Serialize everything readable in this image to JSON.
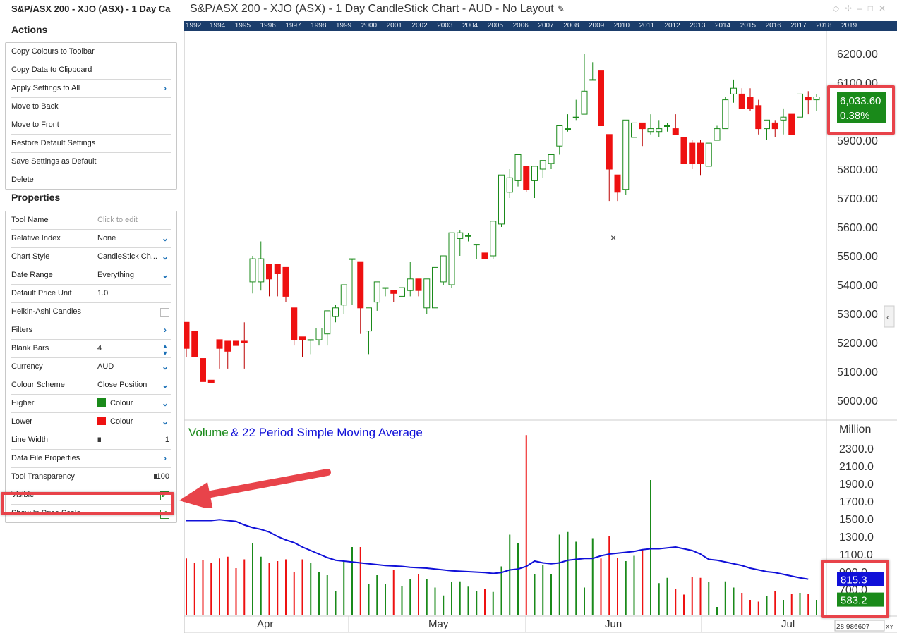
{
  "panel": {
    "title": "S&P/ASX 200 - XJO (ASX) - 1 Day Ca",
    "actions_heading": "Actions",
    "actions": [
      {
        "label": "Copy Colours to Toolbar",
        "arrow": false
      },
      {
        "label": "Copy Data to Clipboard",
        "arrow": false
      },
      {
        "label": "Apply Settings to All",
        "arrow": true
      },
      {
        "label": "Move to Back",
        "arrow": false
      },
      {
        "label": "Move to Front",
        "arrow": false
      },
      {
        "label": "Restore Default Settings",
        "arrow": false
      },
      {
        "label": "Save Settings as Default",
        "arrow": false
      },
      {
        "label": "Delete",
        "arrow": false
      }
    ],
    "properties_heading": "Properties",
    "properties": {
      "tool_name": {
        "label": "Tool Name",
        "placeholder": "Click to edit"
      },
      "relative_index": {
        "label": "Relative Index",
        "value": "None"
      },
      "chart_style": {
        "label": "Chart Style",
        "value": "CandleStick Ch..."
      },
      "date_range": {
        "label": "Date Range",
        "value": "Everything"
      },
      "default_price_unit": {
        "label": "Default Price Unit",
        "value": "1.0"
      },
      "heikin_ashi": {
        "label": "Heikin-Ashi Candles",
        "checked": false
      },
      "filters": {
        "label": "Filters"
      },
      "blank_bars": {
        "label": "Blank Bars",
        "value": "4"
      },
      "currency": {
        "label": "Currency",
        "value": "AUD"
      },
      "colour_scheme": {
        "label": "Colour Scheme",
        "value": "Close Position"
      },
      "higher": {
        "label": "Higher",
        "value": "Colour",
        "color": "#1a8a1a"
      },
      "lower": {
        "label": "Lower",
        "value": "Colour",
        "color": "#ee1111"
      },
      "line_width": {
        "label": "Line Width",
        "value": "1"
      },
      "data_file_properties": {
        "label": "Data File Properties"
      },
      "tool_transparency": {
        "label": "Tool Transparency",
        "value": "100"
      },
      "visible": {
        "label": "Visible",
        "checked": true
      },
      "show_in_price_scale": {
        "label": "Show In Price Scale",
        "checked": true
      }
    }
  },
  "window": {
    "title": "S&P/ASX 200 - XJO (ASX) - 1 Day CandleStick Chart - AUD - No Layout",
    "years": [
      "1992",
      "1994",
      "1995",
      "1996",
      "1997",
      "1998",
      "1999",
      "2000",
      "2001",
      "2002",
      "2003",
      "2004",
      "2005",
      "2006",
      "2007",
      "2008",
      "2009",
      "2010",
      "2011",
      "2012",
      "2013",
      "2014",
      "2015",
      "2016",
      "2017",
      "2018",
      "2019"
    ]
  },
  "chart_data": {
    "type": "candlestick",
    "price_ticks": [
      "6200.00",
      "6100.00",
      "6000.00",
      "5900.00",
      "5800.00",
      "5700.00",
      "5600.00",
      "5500.00",
      "5400.00",
      "5300.00",
      "5200.00",
      "5100.00",
      "5000.00"
    ],
    "last_price": "6,033.60",
    "last_change": "0.38%",
    "up_color": "#1a8a1a",
    "down_color": "#ee1111",
    "candles": [
      [
        5270,
        5290,
        5180,
        5170,
        5150
      ],
      [
        5240,
        5250,
        5150,
        5130,
        5150
      ],
      [
        5145,
        5160,
        5065,
        5060,
        5140
      ],
      [
        5070,
        5210,
        5060,
        5050,
        5080
      ],
      [
        5210,
        5240,
        5180,
        5170,
        5110
      ],
      [
        5205,
        5400,
        5170,
        5120,
        5110
      ],
      [
        5205,
        5230,
        5190,
        5170,
        5110
      ],
      [
        5205,
        5330,
        5200,
        5270,
        5110
      ],
      [
        5410,
        5470,
        5490,
        5500,
        5370
      ],
      [
        5410,
        5480,
        5490,
        5550,
        5380
      ],
      [
        5470,
        5480,
        5420,
        5400,
        5360
      ],
      [
        5470,
        5480,
        5440,
        5420,
        5360
      ],
      [
        5460,
        5480,
        5360,
        5350,
        5340
      ],
      [
        5320,
        5330,
        5210,
        5200,
        5190
      ],
      [
        5220,
        5240,
        5210,
        5200,
        5150
      ],
      [
        5210,
        5260,
        5210,
        5210,
        5160
      ],
      [
        5210,
        5240,
        5250,
        5240,
        5190
      ],
      [
        5230,
        5310,
        5310,
        5270,
        5190
      ],
      [
        5290,
        5320,
        5320,
        5330,
        5270
      ],
      [
        5330,
        5400,
        5400,
        5380,
        5300
      ],
      [
        5490,
        5550,
        5490,
        5470,
        5330
      ],
      [
        5480,
        5390,
        5320,
        5240,
        5230
      ],
      [
        5240,
        5300,
        5320,
        5320,
        5160
      ],
      [
        5340,
        5410,
        5410,
        5410,
        5310
      ],
      [
        5390,
        5400,
        5390,
        5370,
        5360
      ],
      [
        5380,
        5390,
        5370,
        5370,
        5340
      ],
      [
        5360,
        5410,
        5390,
        5390,
        5350
      ],
      [
        5380,
        5430,
        5420,
        5480,
        5360
      ],
      [
        5420,
        5400,
        5380,
        5320,
        5360
      ],
      [
        5320,
        5330,
        5420,
        5410,
        5300
      ],
      [
        5320,
        5420,
        5460,
        5470,
        5310
      ],
      [
        5410,
        5480,
        5500,
        5490,
        5400
      ],
      [
        5400,
        5490,
        5580,
        5560,
        5390
      ],
      [
        5560,
        5540,
        5580,
        5590,
        5500
      ],
      [
        5570,
        5580,
        5570,
        5580,
        5550
      ],
      [
        5540,
        5600,
        5540,
        5520,
        5490
      ],
      [
        5510,
        5550,
        5490,
        5510,
        5490
      ],
      [
        5500,
        5600,
        5620,
        5620,
        5490
      ],
      [
        5610,
        5700,
        5780,
        5780,
        5600
      ],
      [
        5720,
        5780,
        5770,
        5800,
        5700
      ],
      [
        5760,
        5800,
        5850,
        5850,
        5740
      ],
      [
        5810,
        5820,
        5730,
        5720,
        5720
      ],
      [
        5760,
        5790,
        5810,
        5810,
        5700
      ],
      [
        5800,
        5830,
        5830,
        5830,
        5770
      ],
      [
        5820,
        5850,
        5850,
        5850,
        5800
      ],
      [
        5880,
        5940,
        5950,
        5950,
        5850
      ],
      [
        5940,
        5980,
        5940,
        5990,
        5930
      ],
      [
        5980,
        6020,
        5980,
        6040,
        5970
      ],
      [
        5990,
        6100,
        6070,
        6200,
        5990
      ],
      [
        6110,
        6110,
        6110,
        6170,
        6110
      ],
      [
        6140,
        6140,
        5950,
        5950,
        5940
      ],
      [
        5920,
        5910,
        5800,
        5810,
        5690
      ],
      [
        5780,
        5800,
        5720,
        5720,
        5690
      ],
      [
        5730,
        5930,
        5970,
        5970,
        5710
      ],
      [
        5910,
        5950,
        5960,
        5960,
        5890
      ],
      [
        5960,
        5970,
        5940,
        5950,
        5880
      ],
      [
        5930,
        5940,
        5940,
        5990,
        5920
      ],
      [
        5930,
        5960,
        5940,
        5970,
        5910
      ],
      [
        5950,
        5960,
        5950,
        5960,
        5930
      ],
      [
        5940,
        5970,
        5920,
        5990,
        5920
      ],
      [
        5910,
        5930,
        5820,
        5820,
        5820
      ],
      [
        5890,
        5880,
        5820,
        5900,
        5800
      ],
      [
        5890,
        5900,
        5820,
        5900,
        5780
      ],
      [
        5810,
        5860,
        5890,
        5890,
        5810
      ],
      [
        5900,
        5920,
        5940,
        5950,
        5900
      ],
      [
        5940,
        5980,
        6040,
        6050,
        5940
      ],
      [
        6060,
        6050,
        6080,
        6110,
        6030
      ],
      [
        6060,
        6060,
        6010,
        6080,
        6010
      ],
      [
        6050,
        6010,
        6010,
        6080,
        6000
      ],
      [
        6020,
        6030,
        5940,
        6040,
        5920
      ],
      [
        5940,
        5930,
        5970,
        5970,
        5900
      ],
      [
        5960,
        5950,
        5940,
        5970,
        5910
      ],
      [
        5970,
        5940,
        5980,
        6010,
        5920
      ],
      [
        5990,
        5990,
        5920,
        5990,
        5920
      ],
      [
        5980,
        6030,
        6060,
        6060,
        5920
      ],
      [
        6050,
        6060,
        6040,
        6070,
        5990
      ],
      [
        6040,
        6050,
        6050,
        6060,
        6000
      ]
    ],
    "volume_label_volume": "Volume",
    "volume_label_sma": " & 22 Period Simple Moving Average",
    "volume_unit": "Million",
    "volume_ticks": [
      "2300.0",
      "2100.0",
      "1900.0",
      "1700.0",
      "1500.0",
      "1300.0",
      "1100.0",
      "900.0",
      "700.0"
    ],
    "sma_last": "815.3",
    "volume_last": "583.2",
    "sma_color": "#1010d8",
    "months": [
      "Apr",
      "May",
      "Jun",
      "Jul"
    ],
    "corner_readout": "28.986607",
    "xy_label": "XY"
  }
}
